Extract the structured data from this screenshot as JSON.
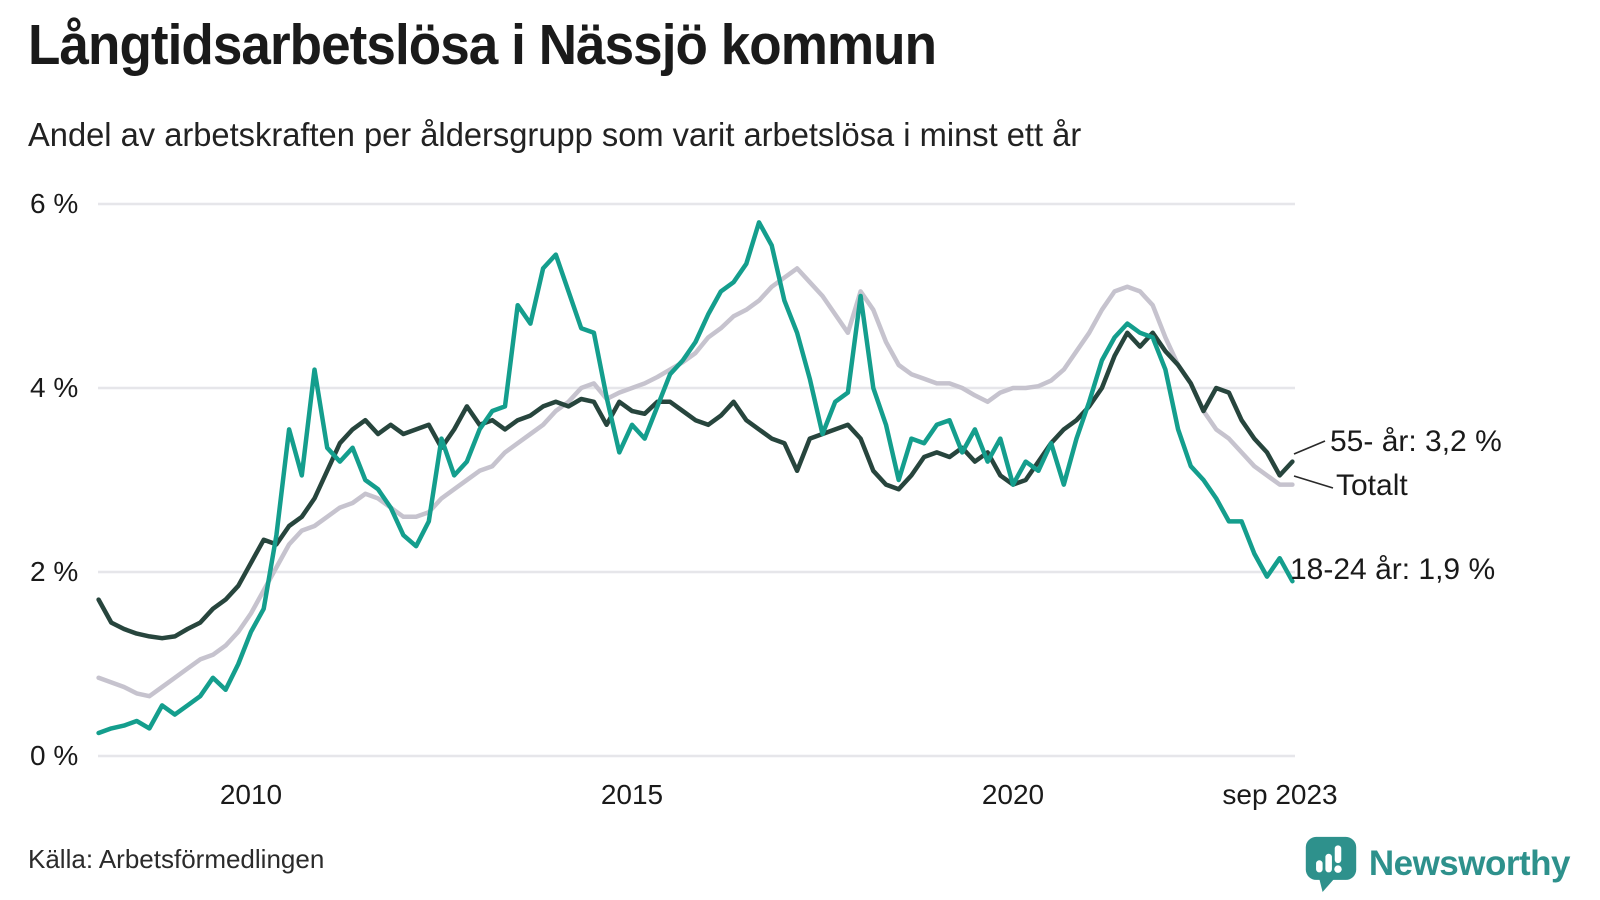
{
  "header": {
    "title": "Långtidsarbetslösa i Nässjö kommun",
    "subtitle": "Andel av arbetskraften per åldersgrupp som varit arbetslösa i minst ett år"
  },
  "chart_data": {
    "type": "line",
    "x_start_year": 2008.0,
    "x_step_years": 0.16667,
    "x_end_label": "sep 2023",
    "ylim": [
      0,
      6
    ],
    "grid": true,
    "y_ticks": [
      {
        "label": "6 %",
        "value": 6
      },
      {
        "label": "4 %",
        "value": 4
      },
      {
        "label": "2 %",
        "value": 2
      },
      {
        "label": "0 %",
        "value": 0
      }
    ],
    "x_ticks": [
      {
        "label": "2010",
        "year": 2010
      },
      {
        "label": "2015",
        "year": 2015
      },
      {
        "label": "2020",
        "year": 2020
      },
      {
        "label": "sep 2023",
        "year": 2023.67
      }
    ],
    "series": [
      {
        "name": "Totalt",
        "color": "#c6c3ce",
        "values": [
          0.85,
          0.8,
          0.75,
          0.68,
          0.65,
          0.75,
          0.85,
          0.95,
          1.05,
          1.1,
          1.2,
          1.35,
          1.55,
          1.8,
          2.05,
          2.3,
          2.45,
          2.5,
          2.6,
          2.7,
          2.75,
          2.85,
          2.8,
          2.7,
          2.6,
          2.6,
          2.65,
          2.8,
          2.9,
          3.0,
          3.1,
          3.15,
          3.3,
          3.4,
          3.5,
          3.6,
          3.75,
          3.85,
          4.0,
          4.05,
          3.88,
          3.95,
          4.0,
          4.05,
          4.12,
          4.2,
          4.28,
          4.38,
          4.55,
          4.65,
          4.78,
          4.85,
          4.95,
          5.1,
          5.2,
          5.3,
          5.15,
          5.0,
          4.8,
          4.6,
          5.05,
          4.85,
          4.5,
          4.25,
          4.15,
          4.1,
          4.05,
          4.05,
          4.0,
          3.92,
          3.85,
          3.95,
          4.0,
          4.0,
          4.02,
          4.08,
          4.2,
          4.4,
          4.6,
          4.85,
          5.05,
          5.1,
          5.05,
          4.9,
          4.55,
          4.25,
          4.05,
          3.75,
          3.55,
          3.45,
          3.3,
          3.15,
          3.05,
          2.95,
          2.95
        ]
      },
      {
        "name": "55- år",
        "color": "#27453d",
        "values": [
          1.7,
          1.45,
          1.38,
          1.33,
          1.3,
          1.28,
          1.3,
          1.38,
          1.45,
          1.6,
          1.7,
          1.85,
          2.1,
          2.35,
          2.3,
          2.5,
          2.6,
          2.8,
          3.1,
          3.4,
          3.55,
          3.65,
          3.5,
          3.6,
          3.5,
          3.55,
          3.6,
          3.35,
          3.55,
          3.8,
          3.6,
          3.65,
          3.55,
          3.65,
          3.7,
          3.8,
          3.85,
          3.8,
          3.88,
          3.85,
          3.6,
          3.85,
          3.75,
          3.72,
          3.85,
          3.85,
          3.75,
          3.65,
          3.6,
          3.7,
          3.85,
          3.65,
          3.55,
          3.45,
          3.4,
          3.1,
          3.45,
          3.5,
          3.55,
          3.6,
          3.45,
          3.1,
          2.95,
          2.9,
          3.05,
          3.25,
          3.3,
          3.25,
          3.35,
          3.2,
          3.3,
          3.05,
          2.95,
          3.0,
          3.2,
          3.4,
          3.55,
          3.65,
          3.8,
          4.0,
          4.35,
          4.6,
          4.45,
          4.6,
          4.4,
          4.25,
          4.05,
          3.75,
          4.0,
          3.95,
          3.65,
          3.45,
          3.3,
          3.05,
          3.2
        ]
      },
      {
        "name": "18-24 år",
        "color": "#149e8d",
        "values": [
          0.25,
          0.3,
          0.33,
          0.38,
          0.3,
          0.55,
          0.45,
          0.55,
          0.65,
          0.85,
          0.72,
          1.0,
          1.35,
          1.6,
          2.4,
          3.55,
          3.05,
          4.2,
          3.35,
          3.2,
          3.35,
          3.0,
          2.9,
          2.7,
          2.4,
          2.28,
          2.55,
          3.45,
          3.05,
          3.2,
          3.55,
          3.75,
          3.8,
          4.9,
          4.7,
          5.3,
          5.45,
          5.05,
          4.65,
          4.6,
          3.9,
          3.3,
          3.6,
          3.45,
          3.8,
          4.15,
          4.3,
          4.5,
          4.8,
          5.05,
          5.15,
          5.35,
          5.8,
          5.55,
          4.95,
          4.6,
          4.1,
          3.5,
          3.85,
          3.95,
          5.0,
          4.0,
          3.6,
          3.0,
          3.45,
          3.4,
          3.6,
          3.65,
          3.3,
          3.55,
          3.2,
          3.45,
          2.95,
          3.2,
          3.1,
          3.4,
          2.95,
          3.45,
          3.85,
          4.3,
          4.55,
          4.7,
          4.6,
          4.55,
          4.2,
          3.55,
          3.15,
          3.0,
          2.8,
          2.55,
          2.55,
          2.2,
          1.95,
          2.15,
          1.9
        ]
      }
    ],
    "annotations": [
      {
        "text": "55- år: 3,2 %"
      },
      {
        "text": "Totalt"
      },
      {
        "text": "18-24 år: 1,9 %"
      }
    ]
  },
  "footer": {
    "source": "Källa: Arbetsförmedlingen",
    "logo_text": "Newsworthy",
    "logo_color": "#2e918c",
    "chart_icon": "bar-chart-speech-bubble"
  }
}
